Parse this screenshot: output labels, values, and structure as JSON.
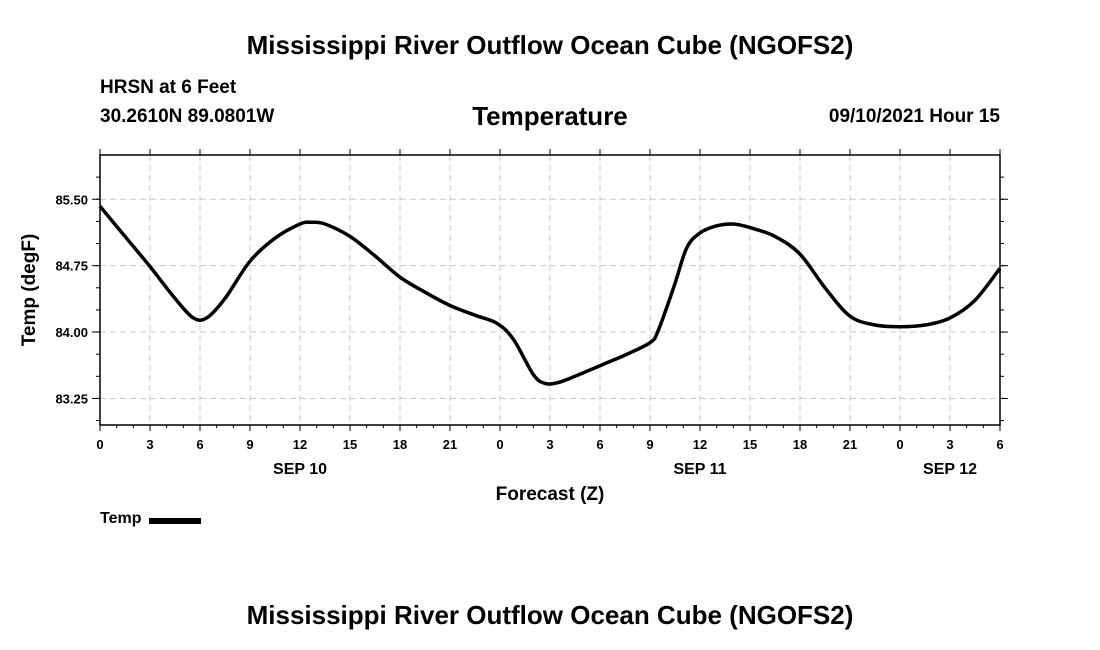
{
  "header": {
    "main_title": "Mississippi River Outflow Ocean Cube (NGOFS2)",
    "station": "HRSN at 6 Feet",
    "coords": "30.2610N  89.0801W",
    "variable_title": "Temperature",
    "run_time": "09/10/2021 Hour 15"
  },
  "footer": {
    "title": "Mississippi River Outflow Ocean Cube (NGOFS2)"
  },
  "legend": {
    "label": "Temp",
    "color": "#000000"
  },
  "chart_data": {
    "type": "line",
    "title": "Temperature",
    "xlabel": "Forecast (Z)",
    "ylabel": "Temp (degF)",
    "xlim": [
      0,
      54
    ],
    "ylim": [
      82.95,
      86.0
    ],
    "grid": true,
    "x_ticks": [
      0,
      3,
      6,
      9,
      12,
      15,
      18,
      21,
      24,
      27,
      30,
      33,
      36,
      39,
      42,
      45,
      48,
      51,
      54
    ],
    "x_tick_labels": [
      "0",
      "3",
      "6",
      "9",
      "12",
      "15",
      "18",
      "21",
      "0",
      "3",
      "6",
      "9",
      "12",
      "15",
      "18",
      "21",
      "0",
      "3",
      "6"
    ],
    "date_labels": [
      {
        "x": 12,
        "label": "SEP 10"
      },
      {
        "x": 36,
        "label": "SEP 11"
      },
      {
        "x": 51,
        "label": "SEP 12"
      }
    ],
    "y_ticks": [
      83.25,
      84.0,
      84.75,
      85.5
    ],
    "y_tick_labels": [
      "83.25",
      "84.00",
      "84.75",
      "85.50"
    ],
    "y_minor_step": 0.25,
    "series": [
      {
        "name": "Temp",
        "color": "#000000",
        "x": [
          0,
          1.5,
          3,
          4.5,
          5.6,
          6.4,
          7.5,
          9,
          10.5,
          12,
          12.7,
          13.5,
          15,
          16.5,
          18,
          19.5,
          21,
          22.5,
          23.8,
          24.8,
          26,
          26.7,
          27.5,
          28.5,
          30,
          31.5,
          33,
          33.5,
          34.5,
          35.2,
          36,
          37,
          38,
          39,
          40.5,
          42,
          43.5,
          45,
          46.5,
          48,
          49.5,
          51,
          52.5,
          54
        ],
        "y": [
          85.42,
          85.08,
          84.74,
          84.38,
          84.16,
          84.16,
          84.38,
          84.8,
          85.06,
          85.22,
          85.24,
          85.22,
          85.08,
          84.86,
          84.62,
          84.45,
          84.3,
          84.19,
          84.1,
          83.92,
          83.52,
          83.42,
          83.43,
          83.5,
          83.62,
          83.74,
          83.88,
          84.02,
          84.55,
          84.95,
          85.12,
          85.2,
          85.22,
          85.18,
          85.08,
          84.88,
          84.5,
          84.18,
          84.08,
          84.06,
          84.08,
          84.16,
          84.36,
          84.72
        ]
      }
    ]
  }
}
